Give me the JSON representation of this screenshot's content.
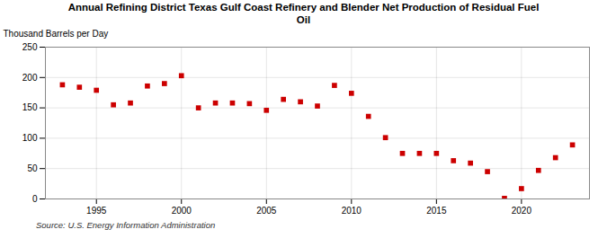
{
  "chart_data": {
    "type": "scatter",
    "title": "Annual Refining District Texas Gulf Coast Refinery and Blender Net Production of Residual Fuel\nOil",
    "ylabel": "Thousand Barrels per Day",
    "annotations": [
      "Source: U.S. Energy Information Administration"
    ],
    "x": [
      1993,
      1994,
      1995,
      1996,
      1997,
      1998,
      1999,
      2000,
      2001,
      2002,
      2003,
      2004,
      2005,
      2006,
      2007,
      2008,
      2009,
      2010,
      2011,
      2012,
      2013,
      2014,
      2015,
      2016,
      2017,
      2018,
      2019,
      2020,
      2021,
      2022,
      2023
    ],
    "values": [
      188,
      184,
      179,
      155,
      158,
      186,
      190,
      203,
      150,
      158,
      158,
      157,
      146,
      164,
      160,
      153,
      187,
      174,
      136,
      101,
      75,
      75,
      75,
      63,
      59,
      45,
      1,
      17,
      47,
      68,
      89
    ],
    "color": "#cc0000",
    "marker": "square",
    "xlim": [
      1992,
      2024
    ],
    "xticks": [
      1995,
      2000,
      2005,
      2010,
      2015,
      2020
    ],
    "ylim": [
      0,
      250
    ],
    "yticks": [
      0,
      50,
      100,
      150,
      200,
      250
    ],
    "grid": true
  }
}
